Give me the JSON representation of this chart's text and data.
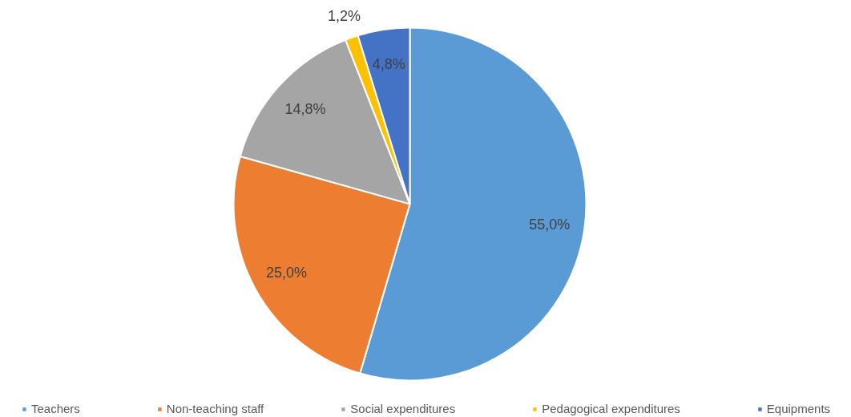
{
  "chart_data": {
    "type": "pie",
    "categories": [
      "Teachers",
      "Non-teaching staff",
      "Social expenditures",
      "Pedagogical expenditures",
      "Equipments"
    ],
    "values": [
      55.0,
      25.0,
      14.8,
      1.2,
      4.8
    ],
    "colors": [
      "#5b9bd5",
      "#ed7d31",
      "#a5a5a5",
      "#ffc000",
      "#4472c4"
    ],
    "value_labels": [
      "55,0%",
      "25,0%",
      "14,8%",
      "1,2%",
      "4,8%"
    ],
    "legend": "bottom"
  }
}
